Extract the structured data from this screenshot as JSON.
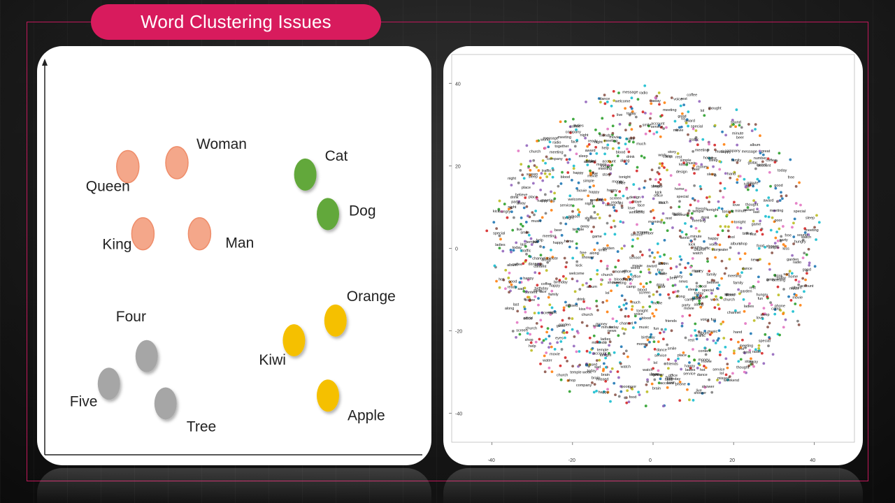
{
  "title": "Word Clustering Issues",
  "colors": {
    "accent": "#d81b5d",
    "orange_cluster": "#f4a78a",
    "green_cluster": "#62a83a",
    "yellow_cluster": "#f5c000",
    "gray_cluster": "#a6a6a6"
  },
  "chart_data": [
    {
      "type": "scatter",
      "title": "",
      "xlabel": "",
      "ylabel": "",
      "xlim": [
        0,
        10
      ],
      "ylim": [
        0,
        10
      ],
      "series": [
        {
          "color": "#f4a78a",
          "points": [
            {
              "label": "Queen",
              "x": 2.2,
              "y": 7.3
            },
            {
              "label": "Woman",
              "x": 3.5,
              "y": 7.4
            },
            {
              "label": "King",
              "x": 2.6,
              "y": 5.6
            },
            {
              "label": "Man",
              "x": 4.1,
              "y": 5.6
            }
          ]
        },
        {
          "color": "#62a83a",
          "points": [
            {
              "label": "Cat",
              "x": 6.9,
              "y": 7.1
            },
            {
              "label": "Dog",
              "x": 7.5,
              "y": 6.1
            }
          ]
        },
        {
          "color": "#f5c000",
          "points": [
            {
              "label": "Orange",
              "x": 7.7,
              "y": 3.4
            },
            {
              "label": "Kiwi",
              "x": 6.6,
              "y": 2.9
            },
            {
              "label": "Apple",
              "x": 7.5,
              "y": 1.5
            }
          ]
        },
        {
          "color": "#a6a6a6",
          "points": [
            {
              "label": "Four",
              "x": 2.7,
              "y": 2.5
            },
            {
              "label": "Five",
              "x": 1.7,
              "y": 1.8
            },
            {
              "label": "Tree",
              "x": 3.2,
              "y": 1.3
            }
          ]
        }
      ]
    },
    {
      "type": "scatter",
      "title": "",
      "xlabel": "",
      "ylabel": "",
      "xlim": [
        -50,
        50
      ],
      "ylim": [
        -47,
        47
      ],
      "xticks": [
        -40,
        -20,
        0,
        20,
        40
      ],
      "yticks": [
        40,
        20,
        0,
        -20,
        -40
      ],
      "labels": [
        "smile",
        "content",
        "album",
        "guitar",
        "sound",
        "ladies",
        "birthday",
        "night",
        "poor",
        "minute",
        "missed",
        "believe",
        "happy",
        "garden",
        "shower",
        "hungry",
        "water",
        "shop",
        "church",
        "camp",
        "money",
        "company",
        "message",
        "account",
        "phone",
        "screen",
        "design",
        "service",
        "meeting",
        "traffic",
        "office",
        "kiss",
        "kick",
        "number",
        "simple",
        "blood",
        "news",
        "brain",
        "place",
        "special",
        "voice",
        "channel",
        "award",
        "story",
        "watch",
        "welcome",
        "together",
        "thought",
        "much",
        "cool",
        "lol",
        "dance",
        "face",
        "eyes",
        "hand",
        "sleep",
        "rest",
        "away",
        "temple",
        "along",
        "family",
        "party",
        "friends",
        "ready",
        "world",
        "game",
        "tonight",
        "weekend",
        "movie",
        "music",
        "radio",
        "live",
        "home",
        "drink",
        "food",
        "coffee",
        "beer",
        "hot",
        "first",
        "last",
        "week",
        "today",
        "morning",
        "birthday",
        "love",
        "hate",
        "help",
        "free",
        "good",
        "great",
        "happy",
        "sad",
        "fun",
        "work",
        "school",
        "class",
        "love"
      ],
      "point_colors": [
        "#1f77b4",
        "#ff7f0e",
        "#2ca02c",
        "#d62728",
        "#9467bd",
        "#8c564b",
        "#e377c2",
        "#7f7f7f",
        "#bcbd22",
        "#17becf"
      ]
    }
  ]
}
